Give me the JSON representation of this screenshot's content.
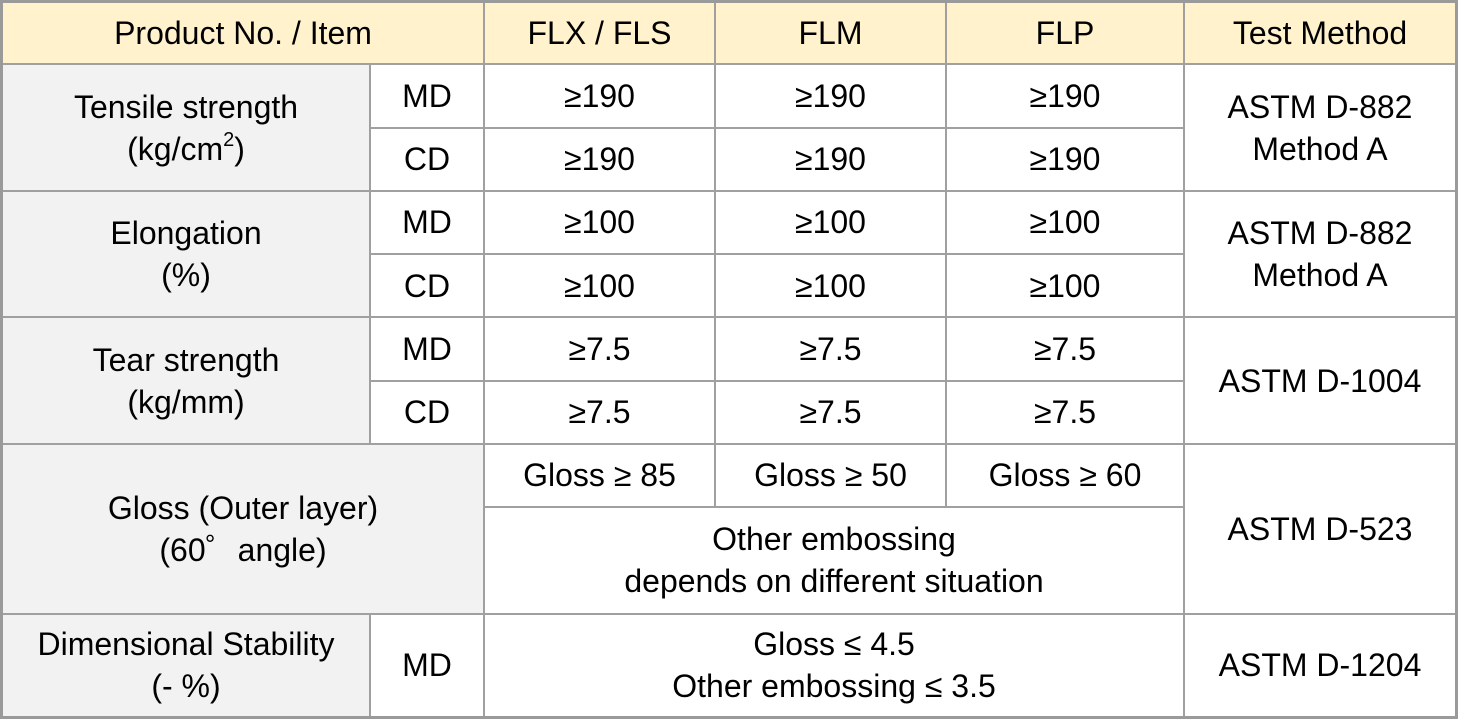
{
  "header": {
    "item": "Product No. / Item",
    "col1": "FLX / FLS",
    "col2": "FLM",
    "col3": "FLP",
    "method": "Test Method"
  },
  "tensile": {
    "label_line1": "Tensile strength",
    "label_line2_prefix": "(kg/cm",
    "label_line2_sup": "2",
    "label_line2_suffix": ")",
    "md": "MD",
    "cd": "CD",
    "md_values": [
      "≥190",
      "≥190",
      "≥190"
    ],
    "cd_values": [
      "≥190",
      "≥190",
      "≥190"
    ],
    "method_line1": "ASTM D-882",
    "method_line2": "Method A"
  },
  "elongation": {
    "label_line1": "Elongation",
    "label_line2": "(%)",
    "md": "MD",
    "cd": "CD",
    "md_values": [
      "≥100",
      "≥100",
      "≥100"
    ],
    "cd_values": [
      "≥100",
      "≥100",
      "≥100"
    ],
    "method_line1": "ASTM D-882",
    "method_line2": "Method A"
  },
  "tear": {
    "label_line1": "Tear strength",
    "label_line2": "(kg/mm)",
    "md": "MD",
    "cd": "CD",
    "md_values": [
      "≥7.5",
      "≥7.5",
      "≥7.5"
    ],
    "cd_values": [
      "≥7.5",
      "≥7.5",
      "≥7.5"
    ],
    "method": "ASTM D-1004"
  },
  "gloss": {
    "label_line1": "Gloss (Outer layer)",
    "label_line2": "(60゜angle)",
    "values": [
      "Gloss ≥ 85",
      "Gloss ≥ 50",
      "Gloss ≥ 60"
    ],
    "note_line1": "Other embossing",
    "note_line2": "depends on different situation",
    "method": "ASTM D-523"
  },
  "dimensional": {
    "label_line1": "Dimensional Stability",
    "label_line2": "(- %)",
    "md": "MD",
    "value_line1": "Gloss ≤ 4.5",
    "value_line2": "Other embossing ≤ 3.5",
    "method": "ASTM D-1204"
  },
  "colors": {
    "header_bg": "#fff2cc",
    "item_bg": "#f2f2f2",
    "border": "#a0a0a0"
  }
}
